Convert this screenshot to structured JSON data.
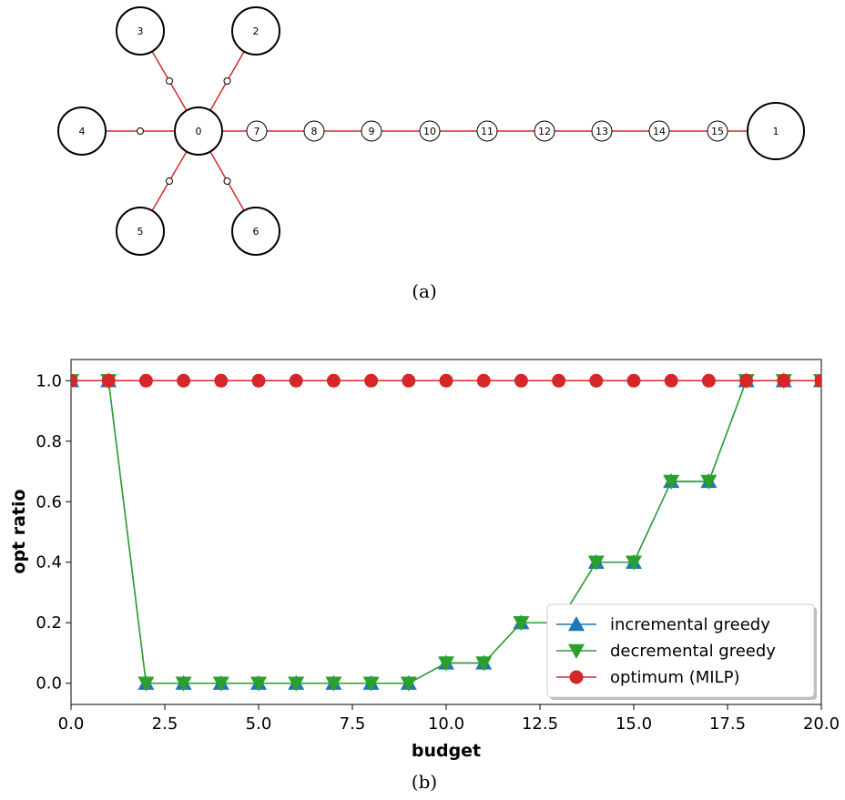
{
  "graph": {
    "caption": "(a)",
    "nodes": [
      {
        "id": "0",
        "label": "0",
        "size": "big"
      },
      {
        "id": "1",
        "label": "1",
        "size": "bigger"
      },
      {
        "id": "2",
        "label": "2",
        "size": "big"
      },
      {
        "id": "3",
        "label": "3",
        "size": "big"
      },
      {
        "id": "4",
        "label": "4",
        "size": "big"
      },
      {
        "id": "5",
        "label": "5",
        "size": "big"
      },
      {
        "id": "6",
        "label": "6",
        "size": "big"
      },
      {
        "id": "7",
        "label": "7",
        "size": "small"
      },
      {
        "id": "8",
        "label": "8",
        "size": "small"
      },
      {
        "id": "9",
        "label": "9",
        "size": "small"
      },
      {
        "id": "10",
        "label": "10",
        "size": "small"
      },
      {
        "id": "11",
        "label": "11",
        "size": "small"
      },
      {
        "id": "12",
        "label": "12",
        "size": "small"
      },
      {
        "id": "13",
        "label": "13",
        "size": "small"
      },
      {
        "id": "14",
        "label": "14",
        "size": "small"
      },
      {
        "id": "15",
        "label": "15",
        "size": "small"
      }
    ],
    "edges": [
      [
        "0",
        "2"
      ],
      [
        "0",
        "3"
      ],
      [
        "0",
        "4"
      ],
      [
        "0",
        "5"
      ],
      [
        "0",
        "6"
      ],
      [
        "0",
        "7"
      ],
      [
        "7",
        "8"
      ],
      [
        "8",
        "9"
      ],
      [
        "9",
        "10"
      ],
      [
        "10",
        "11"
      ],
      [
        "11",
        "12"
      ],
      [
        "12",
        "13"
      ],
      [
        "13",
        "14"
      ],
      [
        "14",
        "15"
      ],
      [
        "15",
        "1"
      ]
    ],
    "edge_color": "#d62728"
  },
  "chart_data": {
    "type": "line",
    "caption": "(b)",
    "xlabel": "budget",
    "ylabel": "opt ratio",
    "xlim": [
      0,
      20
    ],
    "ylim": [
      -0.07,
      1.07
    ],
    "xticks": [
      "0.0",
      "2.5",
      "5.0",
      "7.5",
      "10.0",
      "12.5",
      "15.0",
      "17.5",
      "20.0"
    ],
    "yticks": [
      "0.0",
      "0.2",
      "0.4",
      "0.6",
      "0.8",
      "1.0"
    ],
    "grid": false,
    "legend_position": "lower-right",
    "x": [
      0,
      1,
      2,
      3,
      4,
      5,
      6,
      7,
      8,
      9,
      10,
      11,
      12,
      13,
      14,
      15,
      16,
      17,
      18,
      19,
      20
    ],
    "series": [
      {
        "name": "incremental greedy",
        "color": "#1f77b4",
        "marker": "triangle-up",
        "values": [
          1,
          1,
          0,
          0,
          0,
          0,
          0,
          0,
          0,
          0,
          0.067,
          0.067,
          0.2,
          0.2,
          0.4,
          0.4,
          0.667,
          0.667,
          1,
          1,
          1
        ]
      },
      {
        "name": "decremental greedy",
        "color": "#2ca02c",
        "marker": "triangle-down",
        "values": [
          1,
          1,
          0,
          0,
          0,
          0,
          0,
          0,
          0,
          0,
          0.067,
          0.067,
          0.2,
          0.2,
          0.4,
          0.4,
          0.667,
          0.667,
          1,
          1,
          1
        ]
      },
      {
        "name": "optimum (MILP)",
        "color": "#d62728",
        "marker": "circle",
        "values": [
          1,
          1,
          1,
          1,
          1,
          1,
          1,
          1,
          1,
          1,
          1,
          1,
          1,
          1,
          1,
          1,
          1,
          1,
          1,
          1,
          1
        ]
      }
    ]
  }
}
